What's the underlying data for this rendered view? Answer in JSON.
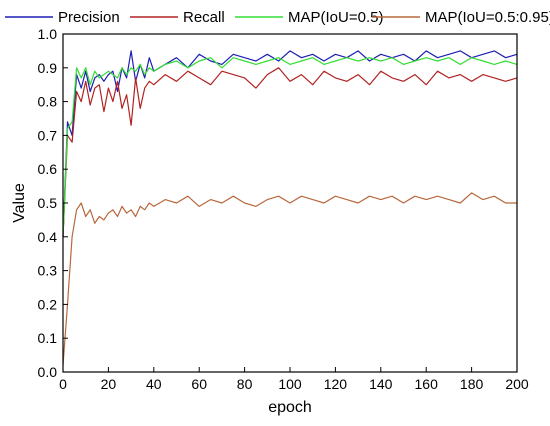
{
  "chart_data": {
    "type": "line",
    "title": "",
    "xlabel": "epoch",
    "ylabel": "Value",
    "xlim": [
      0,
      200
    ],
    "ylim": [
      0.0,
      1.0
    ],
    "xticks": [
      "0",
      "20",
      "40",
      "60",
      "80",
      "100",
      "120",
      "140",
      "160",
      "180",
      "200"
    ],
    "yticks": [
      "0.0",
      "0.1",
      "0.2",
      "0.3",
      "0.4",
      "0.5",
      "0.6",
      "0.7",
      "0.8",
      "0.9",
      "1.0"
    ],
    "grid": false,
    "legend_position": "top",
    "x": [
      0,
      2,
      4,
      6,
      8,
      10,
      12,
      14,
      16,
      18,
      20,
      22,
      24,
      26,
      28,
      30,
      32,
      34,
      36,
      38,
      40,
      45,
      50,
      55,
      60,
      65,
      70,
      75,
      80,
      85,
      90,
      95,
      100,
      105,
      110,
      115,
      120,
      125,
      130,
      135,
      140,
      145,
      150,
      155,
      160,
      165,
      170,
      175,
      180,
      185,
      190,
      195,
      200
    ],
    "series": [
      {
        "name": "Precision",
        "color": "#1f1fb4",
        "values": [
          0.4,
          0.74,
          0.7,
          0.88,
          0.84,
          0.89,
          0.83,
          0.87,
          0.88,
          0.86,
          0.88,
          0.89,
          0.83,
          0.9,
          0.87,
          0.95,
          0.86,
          0.91,
          0.87,
          0.93,
          0.89,
          0.91,
          0.93,
          0.9,
          0.94,
          0.92,
          0.91,
          0.94,
          0.93,
          0.92,
          0.94,
          0.92,
          0.95,
          0.93,
          0.94,
          0.92,
          0.94,
          0.93,
          0.95,
          0.92,
          0.94,
          0.93,
          0.94,
          0.92,
          0.95,
          0.93,
          0.94,
          0.95,
          0.93,
          0.94,
          0.95,
          0.93,
          0.94
        ]
      },
      {
        "name": "Recall",
        "color": "#b22222",
        "values": [
          0.4,
          0.7,
          0.68,
          0.83,
          0.8,
          0.86,
          0.79,
          0.84,
          0.85,
          0.77,
          0.84,
          0.8,
          0.86,
          0.78,
          0.82,
          0.73,
          0.87,
          0.78,
          0.84,
          0.86,
          0.85,
          0.88,
          0.86,
          0.89,
          0.87,
          0.85,
          0.89,
          0.88,
          0.87,
          0.84,
          0.88,
          0.9,
          0.86,
          0.88,
          0.85,
          0.89,
          0.87,
          0.86,
          0.88,
          0.85,
          0.89,
          0.87,
          0.86,
          0.88,
          0.85,
          0.89,
          0.87,
          0.88,
          0.86,
          0.88,
          0.87,
          0.86,
          0.87
        ]
      },
      {
        "name": "MAP(IoU=0.5)",
        "color": "#33dd33",
        "values": [
          0.4,
          0.72,
          0.74,
          0.9,
          0.87,
          0.9,
          0.85,
          0.89,
          0.87,
          0.88,
          0.89,
          0.88,
          0.87,
          0.9,
          0.88,
          0.9,
          0.89,
          0.91,
          0.88,
          0.9,
          0.89,
          0.91,
          0.92,
          0.9,
          0.92,
          0.93,
          0.9,
          0.93,
          0.92,
          0.91,
          0.92,
          0.93,
          0.91,
          0.92,
          0.93,
          0.91,
          0.92,
          0.93,
          0.92,
          0.93,
          0.92,
          0.93,
          0.91,
          0.92,
          0.93,
          0.92,
          0.93,
          0.91,
          0.93,
          0.92,
          0.91,
          0.92,
          0.91
        ]
      },
      {
        "name": "MAP(IoU=0.5:0.95)",
        "color": "#b8683c",
        "values": [
          0.02,
          0.2,
          0.4,
          0.48,
          0.5,
          0.46,
          0.48,
          0.44,
          0.46,
          0.45,
          0.47,
          0.48,
          0.46,
          0.49,
          0.47,
          0.48,
          0.46,
          0.49,
          0.48,
          0.5,
          0.49,
          0.51,
          0.5,
          0.52,
          0.49,
          0.51,
          0.5,
          0.52,
          0.5,
          0.49,
          0.51,
          0.52,
          0.5,
          0.52,
          0.51,
          0.5,
          0.52,
          0.51,
          0.5,
          0.52,
          0.51,
          0.52,
          0.5,
          0.52,
          0.51,
          0.52,
          0.51,
          0.5,
          0.53,
          0.51,
          0.52,
          0.5,
          0.5
        ]
      }
    ]
  }
}
